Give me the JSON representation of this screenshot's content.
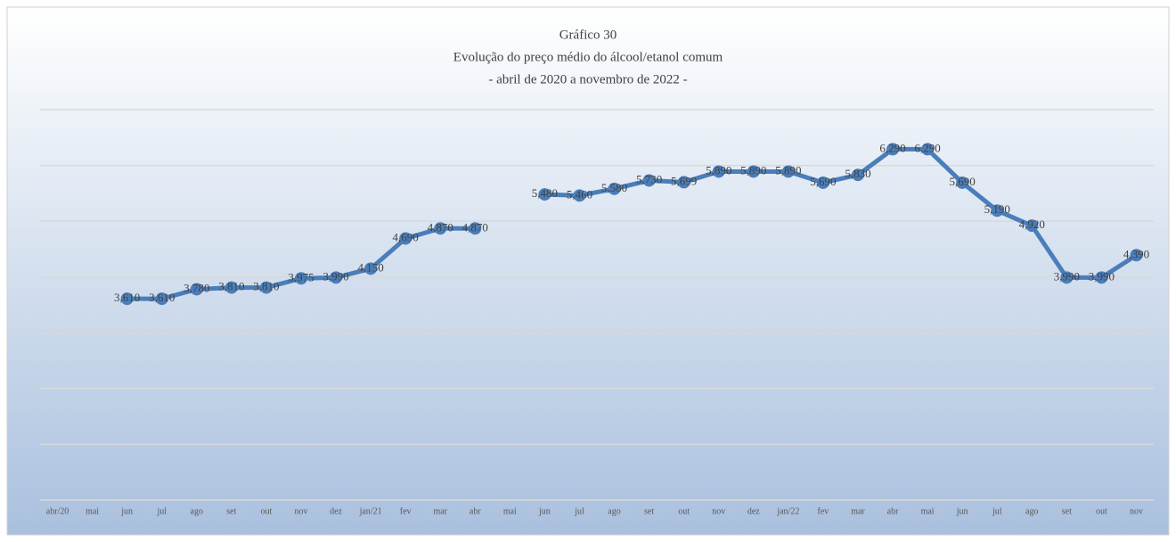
{
  "chart_data": {
    "type": "line",
    "title": "Gráfico 30",
    "subtitle": [
      "Evolução do preço médio do álcool/etanol comum",
      "- abril de 2020 a novembro de 2022 -"
    ],
    "categories": [
      "abr/20",
      "mai",
      "jun",
      "jul",
      "ago",
      "set",
      "out",
      "nov",
      "dez",
      "jan/21",
      "fev",
      "mar",
      "abr",
      "mai",
      "jun",
      "jul",
      "ago",
      "set",
      "out",
      "nov",
      "dez",
      "jan/22",
      "fev",
      "mar",
      "abr",
      "mai",
      "jun",
      "jul",
      "ago",
      "set",
      "out",
      "nov"
    ],
    "values": [
      null,
      null,
      3.61,
      3.61,
      3.78,
      3.81,
      3.81,
      3.975,
      3.99,
      4.15,
      4.69,
      4.87,
      4.87,
      null,
      5.48,
      5.46,
      5.58,
      5.73,
      5.699,
      5.89,
      5.89,
      5.89,
      5.69,
      5.83,
      6.29,
      6.29,
      5.69,
      5.19,
      4.92,
      3.99,
      3.99,
      4.39
    ],
    "value_labels": [
      null,
      null,
      "3,610",
      "3,610",
      "3,780",
      "3,810",
      "3,810",
      "3,975",
      "3,990",
      "4,150",
      "4,690",
      "4,870",
      "4,870",
      null,
      "5,480",
      "5,460",
      "5,580",
      "5,730",
      "5,699",
      "5,890",
      "5,890",
      "5,890",
      "5,690",
      "5,830",
      "6,290",
      "6,290",
      "5,690",
      "5,190",
      "4,920",
      "3,990",
      "3,990",
      "4,390"
    ],
    "color": "#4a7ebb",
    "ylim": [
      0,
      7
    ],
    "yticks": [
      0,
      1,
      2,
      3,
      4,
      5,
      6,
      7
    ],
    "grid": true
  }
}
